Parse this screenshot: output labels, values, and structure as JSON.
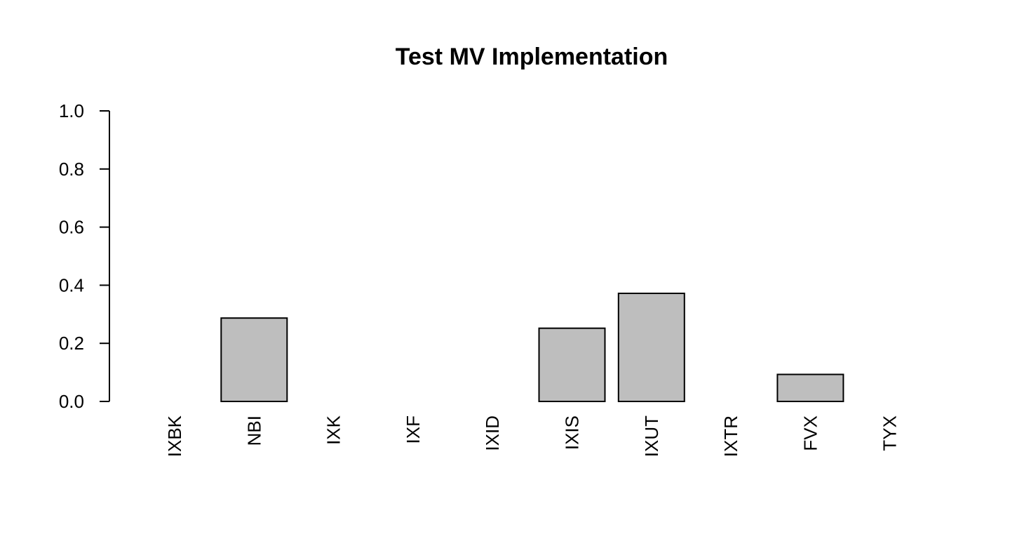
{
  "chart_data": {
    "type": "bar",
    "title": "Test MV Implementation",
    "xlabel": "",
    "ylabel": "",
    "categories": [
      "IXBK",
      "NBI",
      "IXK",
      "IXF",
      "IXID",
      "IXIS",
      "IXUT",
      "IXTR",
      "FVX",
      "TYX"
    ],
    "values": [
      0.0,
      0.287,
      0.0,
      0.0,
      0.0,
      0.252,
      0.372,
      0.0,
      0.093,
      0.0
    ],
    "ylim": [
      0,
      1
    ],
    "yticks": [
      "0.0",
      "0.2",
      "0.4",
      "0.6",
      "0.8",
      "1.0"
    ],
    "grid": false,
    "legend": "none",
    "bar_fill": "#bebebe",
    "bar_stroke": "#000000"
  }
}
